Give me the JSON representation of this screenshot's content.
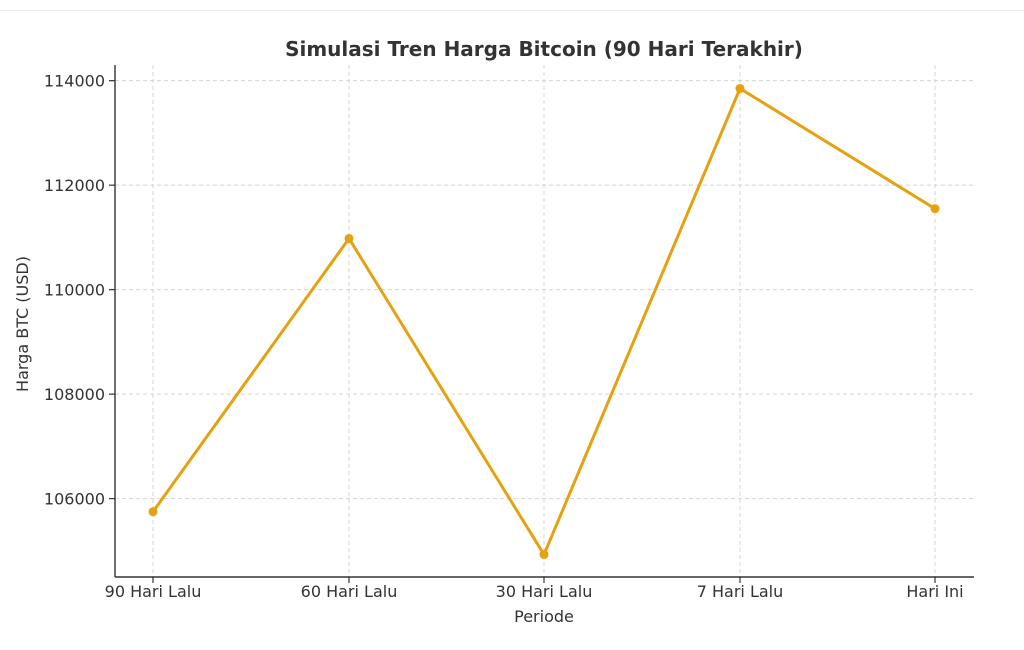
{
  "chart_data": {
    "type": "line",
    "title": "Simulasi Tren Harga Bitcoin (90 Hari Terakhir)",
    "xlabel": "Periode",
    "ylabel": "Harga BTC (USD)",
    "categories": [
      "90 Hari Lalu",
      "60 Hari Lalu",
      "30 Hari Lalu",
      "7 Hari Lalu",
      "Hari Ini"
    ],
    "series": [
      {
        "values": [
          105750,
          110980,
          104930,
          113850,
          111550
        ]
      }
    ],
    "yticks": [
      "106000",
      "108000",
      "110000",
      "112000",
      "114000"
    ],
    "ylim": [
      104500,
      114300
    ],
    "grid": true,
    "color": "#E5A10F"
  }
}
